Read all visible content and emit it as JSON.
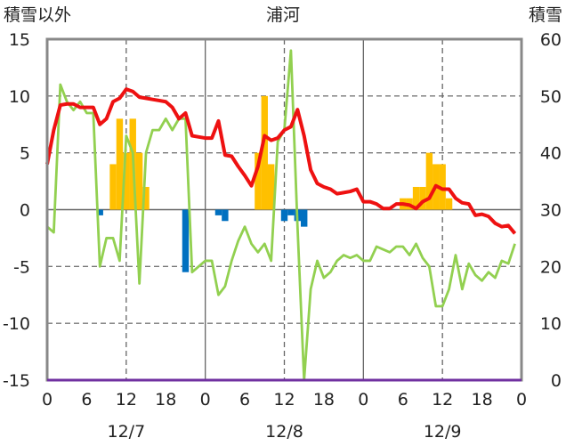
{
  "chart_data": {
    "type": "bar+line",
    "title": "浦河",
    "left_axis_label": "積雪以外",
    "right_axis_label": "積雪",
    "left_ylim": [
      -15,
      15
    ],
    "right_ylim": [
      0,
      60
    ],
    "left_ticks": [
      "15",
      "10",
      "5",
      "0",
      "-5",
      "-10",
      "-15"
    ],
    "right_ticks": [
      "60",
      "50",
      "40",
      "30",
      "20",
      "10",
      "0"
    ],
    "x_hour_labels": [
      "0",
      "6",
      "12",
      "18",
      "0",
      "6",
      "12",
      "18",
      "0",
      "6",
      "12",
      "18",
      "0"
    ],
    "date_labels": [
      "12/7",
      "12/8",
      "12/9"
    ],
    "grid": "dashed vertical at 12h, solid vertical at day boundaries",
    "colors": {
      "temperature": "#ee1111",
      "snow_depth": "#92d050",
      "snowfall_pos": "#ffc000",
      "snowfall_neg": "#0070c0",
      "base_line": "#7030a0"
    },
    "series": [
      {
        "key": "temperature",
        "axis": "left",
        "x": [
          0,
          1,
          2,
          3,
          4,
          5,
          6,
          7,
          8,
          9,
          10,
          11,
          12,
          13,
          14,
          15,
          16,
          17,
          18,
          19,
          20,
          21,
          22,
          23,
          24,
          25,
          26,
          27,
          28,
          29,
          30,
          31,
          32,
          33,
          34,
          35,
          36,
          37,
          38,
          39,
          40,
          41,
          42,
          43,
          44,
          45,
          46,
          47,
          48,
          49,
          50,
          51,
          52,
          53,
          54,
          55,
          56,
          57,
          58,
          59,
          60,
          61,
          62,
          63,
          64,
          65,
          66,
          67,
          68,
          69,
          70,
          71
        ],
        "y": [
          4,
          7,
          9.2,
          9.3,
          9.3,
          9,
          9,
          9,
          7.5,
          8,
          9.5,
          9.8,
          10.6,
          10.4,
          9.9,
          9.8,
          9.7,
          9.6,
          9.5,
          9,
          8,
          8.5,
          6.5,
          6.4,
          6.3,
          6.3,
          7.8,
          4.8,
          4.7,
          3.8,
          3,
          2.1,
          3.8,
          6.5,
          6.1,
          6.3,
          7,
          7.3,
          8.8,
          6.5,
          3.5,
          2.3,
          2,
          1.8,
          1.4,
          1.5,
          1.6,
          1.8,
          0.7,
          0.7,
          0.5,
          0.1,
          0.1,
          0.5,
          0.5,
          0.4,
          0.1,
          0.7,
          1,
          2.1,
          1.8,
          1.8,
          1,
          0.6,
          0.5,
          -0.5,
          -0.4,
          -0.6,
          -1.2,
          -1.5,
          -1.4,
          -2.1
        ]
      },
      {
        "key": "snow_depth",
        "axis": "right",
        "x": [
          0,
          1,
          2,
          3,
          4,
          5,
          6,
          7,
          8,
          9,
          10,
          11,
          12,
          13,
          14,
          15,
          16,
          17,
          18,
          19,
          20,
          21,
          22,
          23,
          24,
          25,
          26,
          27,
          28,
          29,
          30,
          31,
          32,
          33,
          34,
          35,
          36,
          37,
          38,
          39,
          40,
          41,
          42,
          43,
          44,
          45,
          46,
          47,
          48,
          49,
          50,
          51,
          52,
          53,
          54,
          55,
          56,
          57,
          58,
          59,
          60,
          61,
          62,
          63,
          64,
          65,
          66,
          67,
          68,
          69,
          70,
          71
        ],
        "y": [
          27,
          26,
          52,
          49,
          47.5,
          49,
          47,
          47,
          20,
          25,
          25,
          21,
          43,
          40,
          17,
          40,
          44,
          44,
          46,
          44,
          46,
          46,
          19,
          20,
          21,
          21,
          15,
          16.5,
          21,
          24.5,
          27,
          24,
          22.5,
          24,
          21,
          42,
          44,
          58,
          27,
          0,
          16,
          21,
          18,
          19,
          21,
          22,
          21.5,
          22,
          21,
          21,
          23.5,
          23,
          22.5,
          23.5,
          23.5,
          22,
          24,
          21.5,
          20,
          13,
          13,
          16,
          22,
          16,
          20.5,
          18.5,
          17.5,
          19,
          18,
          21,
          20.5,
          24
        ]
      },
      {
        "key": "snowfall",
        "axis": "left",
        "type": "bar",
        "x": [
          8,
          10,
          11,
          12,
          13,
          14,
          15,
          21,
          26,
          27,
          32,
          33,
          34,
          36,
          37,
          38,
          39,
          54,
          55,
          56,
          57,
          58,
          59,
          60,
          61
        ],
        "y": [
          -0.5,
          4,
          8,
          5,
          8,
          5,
          2,
          -5.5,
          -0.5,
          -1,
          5,
          10,
          4,
          -1,
          -0.5,
          -1,
          -1.5,
          1,
          1,
          2,
          2,
          5,
          4,
          4,
          1
        ]
      }
    ],
    "base_line_value": -15
  }
}
